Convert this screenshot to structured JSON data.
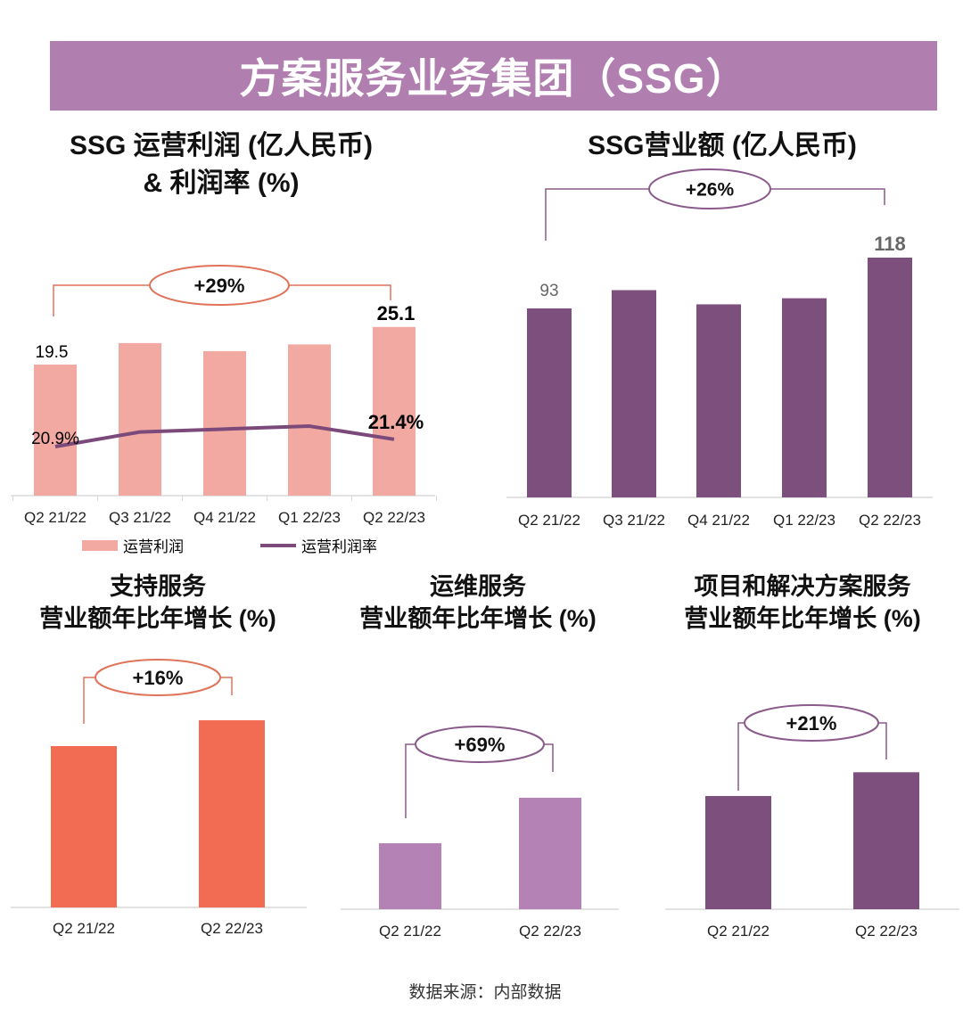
{
  "banner_title": "方案服务业务集团（SSG）",
  "source": "数据来源：内部数据",
  "colors": {
    "banner": "#b07fb0",
    "profit_bar": "#f2a9a2",
    "margin_line": "#7b4a7b",
    "revenue_bar": "#7c4f7c",
    "support_bar": "#f26b53",
    "ops_bar": "#b482b5",
    "project_bar": "#7c4f7c",
    "orange_outline": "#e0735a",
    "purple_outline": "#8a5a8a"
  },
  "chart_data": [
    {
      "type": "bar",
      "title_line1": "SSG 运营利润 (亿人民币)",
      "title_line2": "& 利润率 (%)",
      "categories": [
        "Q2 21/22",
        "Q3 21/22",
        "Q4 21/22",
        "Q1 22/23",
        "Q2 22/23"
      ],
      "series": [
        {
          "name": "运营利润",
          "type": "bar",
          "values": [
            19.5,
            22.7,
            21.5,
            22.5,
            25.1
          ],
          "labels": [
            "19.5",
            "",
            "",
            "",
            "25.1"
          ]
        },
        {
          "name": "运营利润率",
          "type": "line",
          "values": [
            20.9,
            21.9,
            22.1,
            22.3,
            21.4
          ],
          "labels": [
            "20.9%",
            "",
            "",
            "",
            "21.4%"
          ]
        }
      ],
      "growth_label": "+29%",
      "legend": [
        "运营利润",
        "运营利润率"
      ],
      "legend_position": "bottom"
    },
    {
      "type": "bar",
      "title_line1": "SSG营业额 (亿人民币)",
      "categories": [
        "Q2 21/22",
        "Q3 21/22",
        "Q4 21/22",
        "Q1 22/23",
        "Q2 22/23"
      ],
      "values": [
        93,
        102,
        95,
        98,
        118
      ],
      "labels": [
        "93",
        "",
        "",
        "",
        "118"
      ],
      "growth_label": "+26%"
    },
    {
      "type": "bar",
      "title_line1": "支持服务",
      "title_line2": "营业额年比年增长 (%)",
      "categories": [
        "Q2 21/22",
        "Q2 22/23"
      ],
      "values": [
        100,
        116
      ],
      "growth_label": "+16%"
    },
    {
      "type": "bar",
      "title_line1": "运维服务",
      "title_line2": "营业额年比年增长 (%)",
      "categories": [
        "Q2 21/22",
        "Q2 22/23"
      ],
      "values": [
        100,
        169
      ],
      "growth_label": "+69%"
    },
    {
      "type": "bar",
      "title_line1": "项目和解决方案服务",
      "title_line2": "营业额年比年增长 (%)",
      "categories": [
        "Q2 21/22",
        "Q2 22/23"
      ],
      "values": [
        100,
        121
      ],
      "growth_label": "+21%"
    }
  ]
}
